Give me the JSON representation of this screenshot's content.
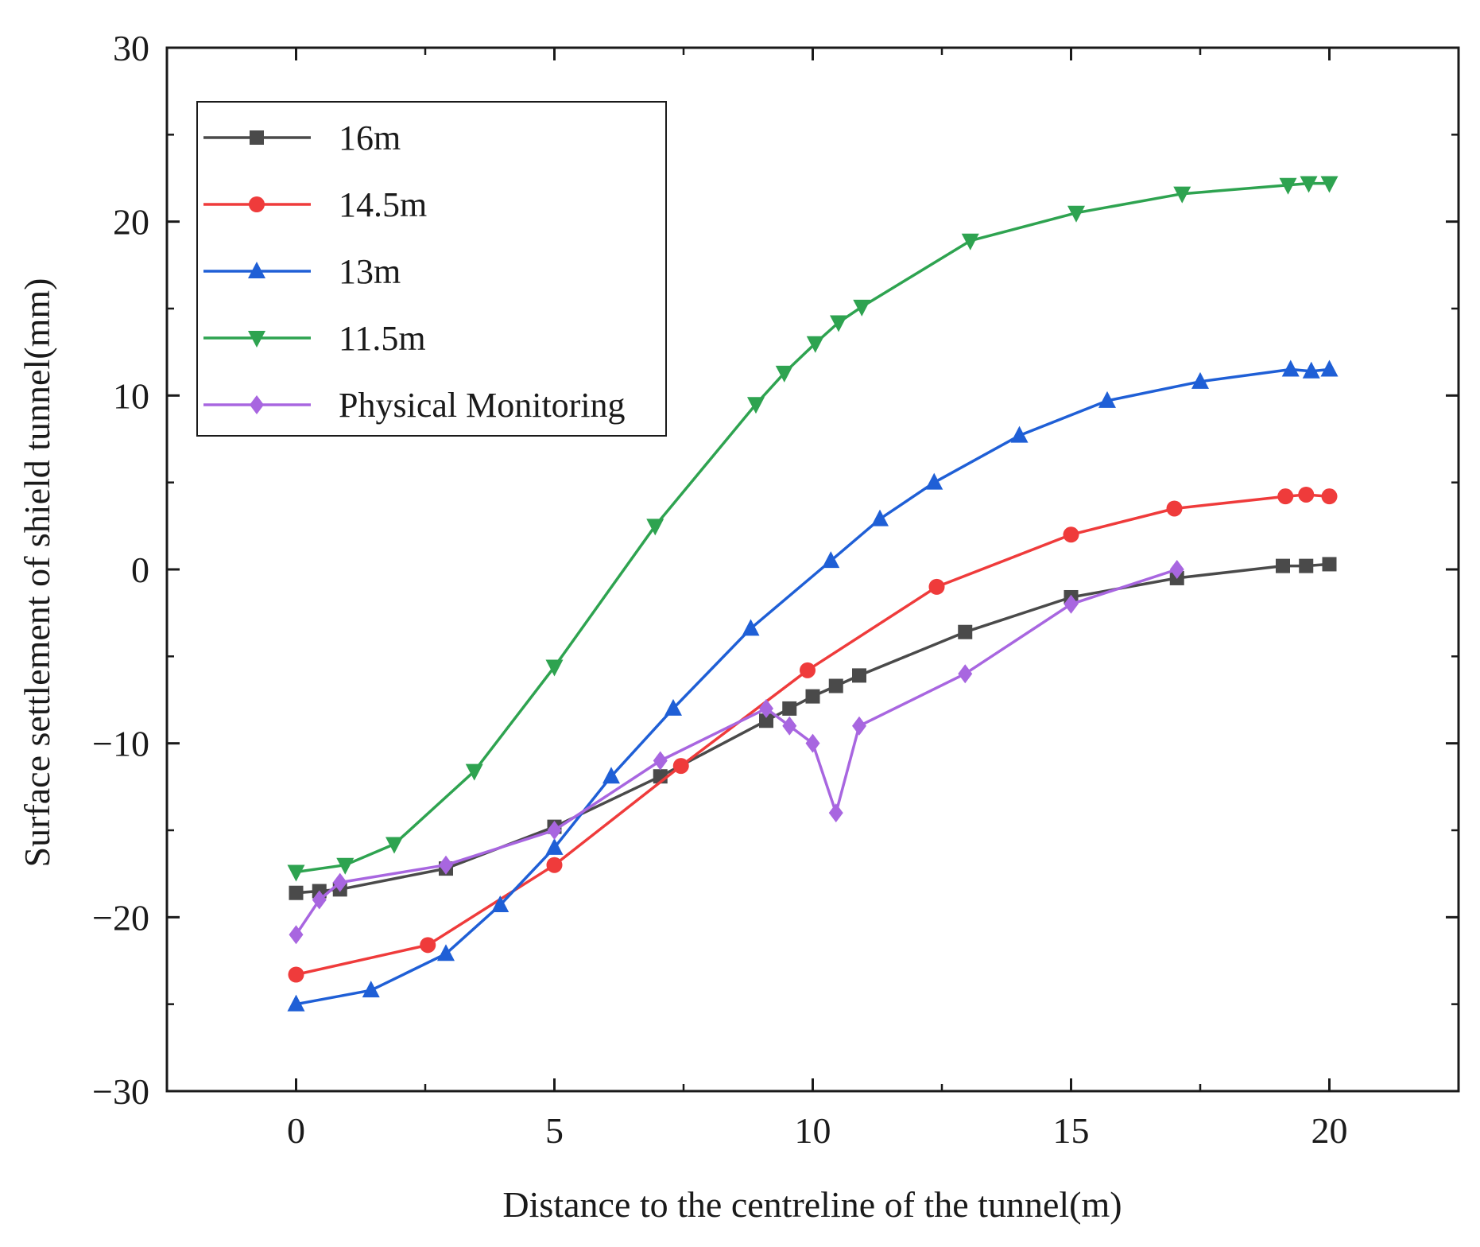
{
  "chart_data": {
    "type": "line",
    "title": "",
    "xlabel": "Distance to the centreline of the tunnel(m)",
    "ylabel": "Surface settlement of shield tunnel(mm)",
    "xlim": [
      -2.5,
      22.5
    ],
    "ylim": [
      -30,
      30
    ],
    "xticks": [
      0,
      5,
      10,
      15,
      20
    ],
    "yticks": [
      -30,
      -20,
      -10,
      0,
      10,
      20,
      30
    ],
    "xtick_labels": [
      "0",
      "5",
      "10",
      "15",
      "20"
    ],
    "ytick_labels": [
      "−30",
      "−20",
      "−10",
      "0",
      "10",
      "20",
      "30"
    ],
    "grid": false,
    "legend_position": "top-left",
    "series": [
      {
        "name": "16m",
        "color": "#4a4a4a",
        "marker": "square",
        "x": [
          0,
          0.45,
          0.85,
          2.9,
          5.0,
          7.05,
          9.1,
          9.55,
          10.0,
          10.45,
          10.9,
          12.95,
          15.0,
          17.05,
          19.1,
          19.55,
          20.0
        ],
        "y": [
          -18.6,
          -18.5,
          -18.4,
          -17.2,
          -14.8,
          -11.9,
          -8.7,
          -8.0,
          -7.3,
          -6.7,
          -6.1,
          -3.6,
          -1.6,
          -0.5,
          0.2,
          0.2,
          0.3
        ]
      },
      {
        "name": "14.5m",
        "color": "#ef3b3b",
        "marker": "circle",
        "x": [
          0,
          2.55,
          5.0,
          7.45,
          9.9,
          12.4,
          15.0,
          17.0,
          19.15,
          19.55,
          20.0
        ],
        "y": [
          -23.3,
          -21.6,
          -17.0,
          -11.3,
          -5.8,
          -1.0,
          2.0,
          3.5,
          4.2,
          4.3,
          4.2
        ]
      },
      {
        "name": "13m",
        "color": "#1f5fd6",
        "marker": "triangle-up",
        "x": [
          0,
          1.45,
          2.9,
          3.95,
          5.0,
          6.1,
          7.3,
          8.8,
          10.35,
          11.3,
          12.35,
          14.0,
          15.7,
          17.5,
          19.25,
          19.65,
          20.0
        ],
        "y": [
          -25.0,
          -24.2,
          -22.1,
          -19.3,
          -16.0,
          -11.9,
          -8.0,
          -3.4,
          0.5,
          2.9,
          5.0,
          7.7,
          9.7,
          10.8,
          11.5,
          11.4,
          11.5
        ]
      },
      {
        "name": "11.5m",
        "color": "#2ea350",
        "marker": "triangle-down",
        "x": [
          0,
          0.95,
          1.9,
          3.45,
          5.0,
          6.95,
          8.9,
          9.45,
          10.05,
          10.5,
          10.95,
          13.05,
          15.1,
          17.15,
          19.2,
          19.6,
          20.0
        ],
        "y": [
          -17.4,
          -17.0,
          -15.8,
          -11.6,
          -5.6,
          2.5,
          9.5,
          11.3,
          13.0,
          14.2,
          15.1,
          18.9,
          20.5,
          21.6,
          22.1,
          22.2,
          22.2
        ]
      },
      {
        "name": "Physical Monitoring",
        "color": "#a866e0",
        "marker": "diamond",
        "x": [
          0,
          0.45,
          0.85,
          2.9,
          5.0,
          7.05,
          9.1,
          9.55,
          10.0,
          10.45,
          10.9,
          12.95,
          15.0,
          17.05
        ],
        "y": [
          -21.0,
          -19.0,
          -18.0,
          -17.0,
          -15.0,
          -11.0,
          -8.0,
          -9.0,
          -10.0,
          -14.0,
          -9.0,
          -6.0,
          -2.0,
          0.0
        ]
      }
    ]
  }
}
